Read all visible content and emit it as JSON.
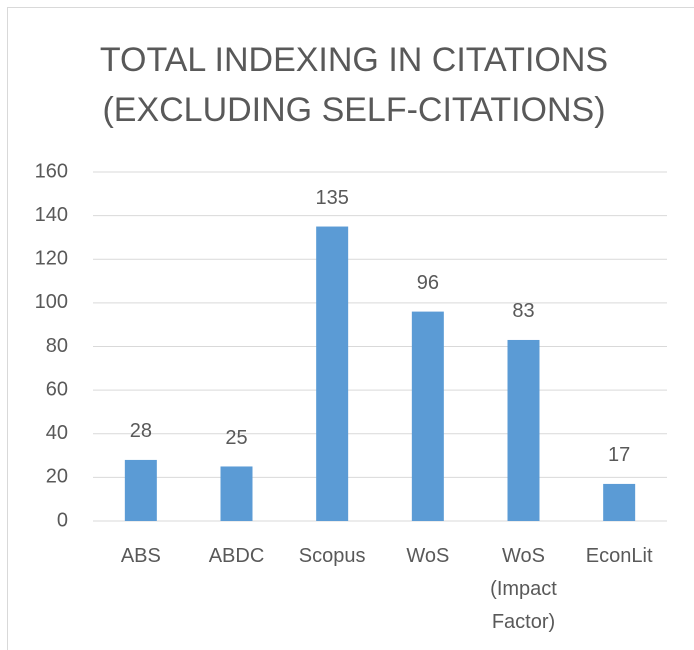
{
  "chart_data": {
    "type": "bar",
    "title": [
      "TOTAL INDEXING IN CITATIONS",
      "(EXCLUDING SELF-CITATIONS)"
    ],
    "categories": [
      "ABS",
      "ABDC",
      "Scopus",
      "WoS",
      "WoS (Impact Factor)",
      "EconLit"
    ],
    "values": [
      28,
      25,
      135,
      96,
      83,
      17
    ],
    "color": "#5b9bd5",
    "ylim": [
      0,
      160
    ],
    "yticks": [
      0,
      20,
      40,
      60,
      80,
      100,
      120,
      140,
      160
    ],
    "grid": true
  }
}
